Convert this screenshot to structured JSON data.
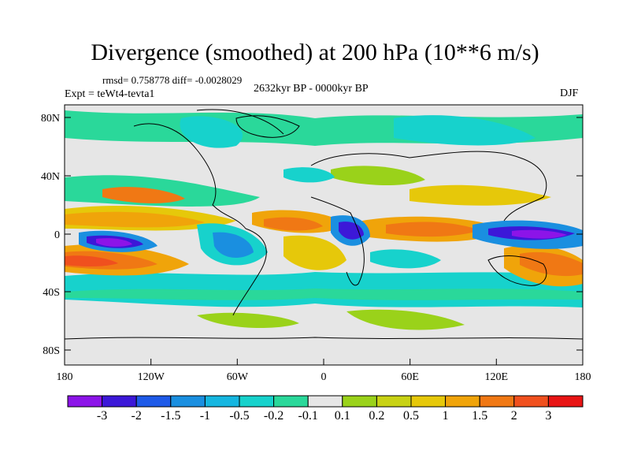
{
  "title": "Divergence (smoothed) at 200 hPa (10**6 m/s)",
  "stats": "rmsd= 0.758778 diff= -0.0028029",
  "period": "2632kyr BP - 0000kyr BP",
  "experiment": "Expt = teWt4-tevta1",
  "season": "DJF",
  "axes": {
    "y_ticks": [
      "80N",
      "40N",
      "0",
      "40S",
      "80S"
    ],
    "x_ticks": [
      "180",
      "120W",
      "60W",
      "0",
      "60E",
      "120E",
      "180"
    ]
  },
  "colorbar": {
    "colors": [
      "#8c14e8",
      "#3c18d8",
      "#1e5ae8",
      "#1a8fe0",
      "#15b6e0",
      "#17d2cc",
      "#2ad89a",
      "#e6e6e6",
      "#9ad21a",
      "#c8d214",
      "#e6c80a",
      "#f0a40a",
      "#f07814",
      "#f0501e",
      "#e81414"
    ],
    "labels": [
      "-3",
      "-2",
      "-1.5",
      "-1",
      "-0.5",
      "-0.2",
      "-0.1",
      "0.1",
      "0.2",
      "0.5",
      "1",
      "1.5",
      "2",
      "3"
    ]
  }
}
